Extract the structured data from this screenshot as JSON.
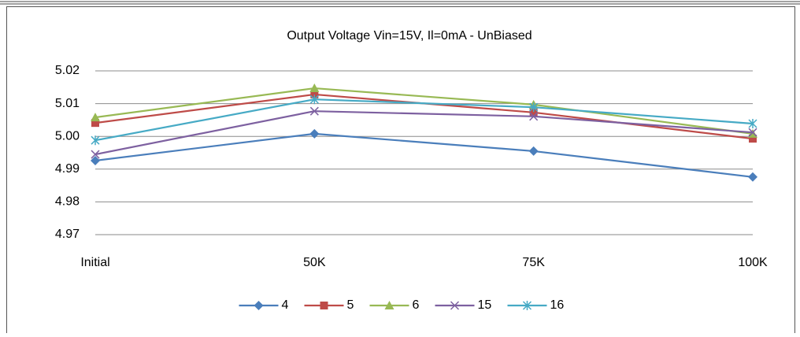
{
  "chart_data": {
    "type": "line",
    "title": "Output Voltage Vin=15V, Il=0mA - UnBiased",
    "categories": [
      "Initial",
      "50K",
      "75K",
      "100K"
    ],
    "series": [
      {
        "name": "4",
        "color": "#4a7ebb",
        "marker": "diamond",
        "values": [
          4.9926,
          5.0008,
          4.9955,
          4.9876
        ]
      },
      {
        "name": "5",
        "color": "#be4b48",
        "marker": "square",
        "values": [
          5.0041,
          5.0128,
          5.0073,
          4.9993
        ]
      },
      {
        "name": "6",
        "color": "#98b954",
        "marker": "triangle",
        "values": [
          5.0058,
          5.0147,
          5.0097,
          5.0008
        ]
      },
      {
        "name": "15",
        "color": "#7d60a0",
        "marker": "x",
        "values": [
          4.9945,
          5.0077,
          5.0061,
          5.0012
        ]
      },
      {
        "name": "16",
        "color": "#46aac5",
        "marker": "star",
        "values": [
          4.9988,
          5.0113,
          5.0089,
          5.0039
        ]
      }
    ],
    "ylim": [
      4.97,
      5.02
    ],
    "yticks": [
      4.97,
      4.98,
      4.99,
      {
        "value": 5,
        "label": "5.00"
      },
      5.01,
      5.02
    ],
    "grid": true,
    "legend": "bottom"
  }
}
